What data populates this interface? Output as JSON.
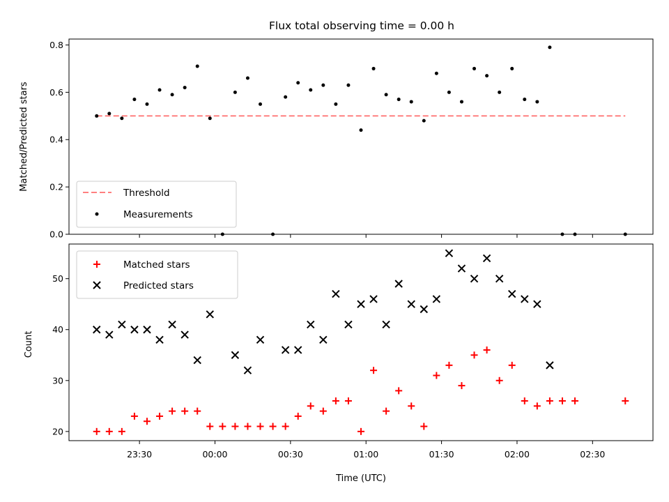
{
  "chart_data": {
    "title": "Flux total observing time = 0.00 h",
    "xlabel": "Time (UTC)",
    "x_ticks": [
      "23:30",
      "00:00",
      "00:30",
      "01:00",
      "01:30",
      "02:00",
      "02:30"
    ],
    "x_tick_minutes": [
      -30,
      0,
      30,
      60,
      90,
      120,
      150
    ],
    "x_range_minutes": [
      -58,
      174
    ],
    "top": {
      "type": "scatter",
      "ylabel": "Matched/Predicted stars",
      "ylim": [
        0,
        0.825
      ],
      "y_ticks": [
        0.0,
        0.2,
        0.4,
        0.6,
        0.8
      ],
      "y_tick_labels": [
        "0.0",
        "0.2",
        "0.4",
        "0.6",
        "0.8"
      ],
      "threshold": {
        "name": "Threshold",
        "value": 0.5,
        "x_from_minutes": -47,
        "x_to_minutes": 163,
        "color": "#ff7f7f"
      },
      "measurements": {
        "name": "Measurements",
        "color": "#000000",
        "x_minutes": [
          -47,
          -42,
          -37,
          -32,
          -27,
          -22,
          -17,
          -12,
          -7,
          -2,
          3,
          8,
          13,
          18,
          23,
          28,
          33,
          38,
          43,
          48,
          53,
          58,
          63,
          68,
          73,
          78,
          83,
          88,
          93,
          98,
          103,
          108,
          113,
          118,
          123,
          128,
          133,
          138,
          143,
          163
        ],
        "y": [
          0.5,
          0.51,
          0.49,
          0.57,
          0.55,
          0.61,
          0.59,
          0.62,
          0.71,
          0.49,
          0.0,
          0.6,
          0.66,
          0.55,
          0.0,
          0.58,
          0.64,
          0.61,
          0.63,
          0.55,
          0.63,
          0.44,
          0.7,
          0.59,
          0.57,
          0.56,
          0.48,
          0.68,
          0.6,
          0.56,
          0.7,
          0.67,
          0.6,
          0.7,
          0.57,
          0.56,
          0.79,
          0.0,
          0.0,
          0.0
        ]
      }
    },
    "bottom": {
      "type": "scatter",
      "ylabel": "Count",
      "ylim": [
        18.2,
        56.8
      ],
      "y_ticks": [
        20,
        30,
        40,
        50
      ],
      "y_tick_labels": [
        "20",
        "30",
        "40",
        "50"
      ],
      "matched": {
        "name": "Matched stars",
        "color": "#ff0000",
        "x_minutes": [
          -47,
          -42,
          -37,
          -32,
          -27,
          -22,
          -17,
          -12,
          -7,
          -2,
          3,
          8,
          13,
          18,
          23,
          28,
          33,
          38,
          43,
          48,
          53,
          58,
          63,
          68,
          73,
          78,
          83,
          88,
          93,
          98,
          103,
          108,
          113,
          118,
          123,
          128,
          133,
          138,
          143,
          163
        ],
        "y": [
          20,
          20,
          20,
          23,
          22,
          23,
          24,
          24,
          24,
          21,
          21,
          21,
          21,
          21,
          21,
          21,
          23,
          25,
          24,
          26,
          26,
          20,
          32,
          24,
          28,
          25,
          21,
          31,
          33,
          29,
          35,
          36,
          30,
          33,
          26,
          25,
          26,
          26,
          26,
          26
        ]
      },
      "predicted": {
        "name": "Predicted stars",
        "color": "#000000",
        "x_minutes": [
          -47,
          -42,
          -37,
          -32,
          -27,
          -22,
          -17,
          -12,
          -7,
          -2,
          8,
          13,
          18,
          28,
          33,
          38,
          43,
          48,
          53,
          58,
          63,
          68,
          73,
          78,
          83,
          88,
          93,
          98,
          103,
          108,
          113,
          118,
          123,
          128,
          133
        ],
        "y": [
          40,
          39,
          41,
          40,
          40,
          38,
          41,
          39,
          34,
          43,
          35,
          32,
          38,
          36,
          36,
          41,
          38,
          47,
          41,
          45,
          46,
          41,
          49,
          45,
          44,
          46,
          55,
          52,
          50,
          54,
          50,
          47,
          46,
          45,
          33
        ]
      }
    },
    "legend_top": {
      "placement": "lower-left",
      "entries": [
        "Threshold",
        "Measurements"
      ]
    },
    "legend_bottom": {
      "placement": "upper-left",
      "entries": [
        "Matched stars",
        "Predicted stars"
      ]
    }
  }
}
